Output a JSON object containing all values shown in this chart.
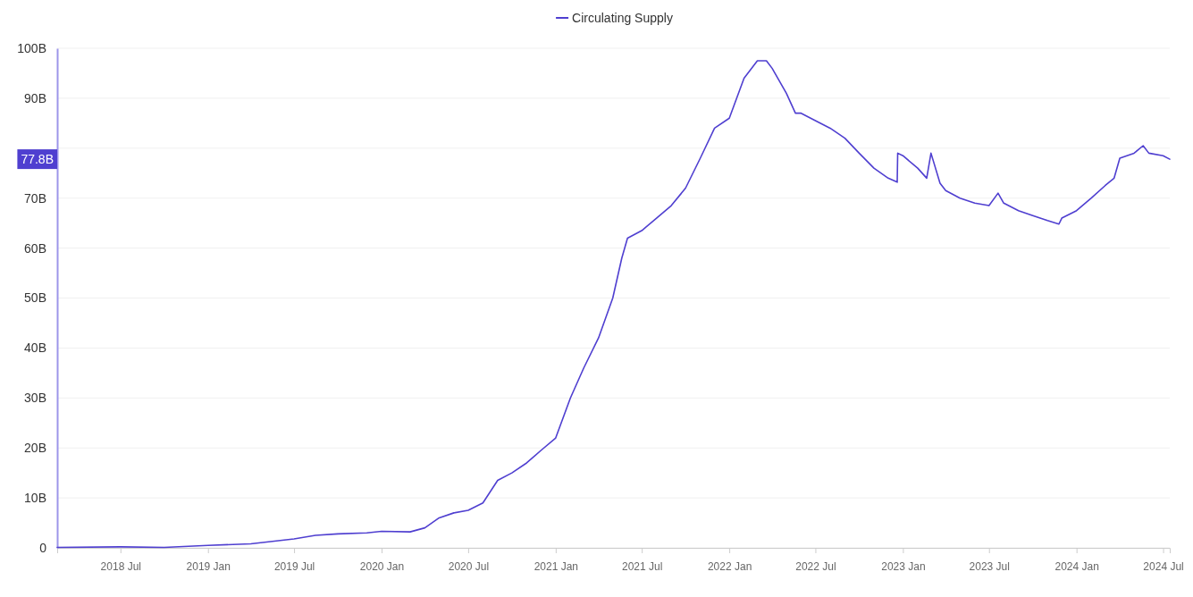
{
  "chart_data": {
    "type": "line",
    "legend": "top",
    "grid": "y",
    "xlim": [
      "2018-02-18",
      "2024-07-15"
    ],
    "xticks": [
      {
        "value": "2018-07-01",
        "label": "2018 Jul"
      },
      {
        "value": "2019-01-01",
        "label": "2019 Jan"
      },
      {
        "value": "2019-07-01",
        "label": "2019 Jul"
      },
      {
        "value": "2020-01-01",
        "label": "2020 Jan"
      },
      {
        "value": "2020-07-01",
        "label": "2020 Jul"
      },
      {
        "value": "2021-01-01",
        "label": "2021 Jan"
      },
      {
        "value": "2021-07-01",
        "label": "2021 Jul"
      },
      {
        "value": "2022-01-01",
        "label": "2022 Jan"
      },
      {
        "value": "2022-07-01",
        "label": "2022 Jul"
      },
      {
        "value": "2023-01-01",
        "label": "2023 Jan"
      },
      {
        "value": "2023-07-01",
        "label": "2023 Jul"
      },
      {
        "value": "2024-01-01",
        "label": "2024 Jan"
      },
      {
        "value": "2024-07-01",
        "label": "2024 Jul"
      }
    ],
    "ylim": [
      0,
      100
    ],
    "yticks": [
      0,
      {
        "value": 10,
        "label": "10B"
      },
      {
        "value": 20,
        "label": "20B"
      },
      {
        "value": 30,
        "label": "30B"
      },
      {
        "value": 40,
        "label": "40B"
      },
      {
        "value": 50,
        "label": "50B"
      },
      {
        "value": 60,
        "label": "60B"
      },
      {
        "value": 70,
        "label": "70B"
      },
      {
        "value": 80,
        "label": null
      },
      {
        "value": 90,
        "label": "90B"
      },
      {
        "value": 100,
        "label": "100B"
      }
    ],
    "annotations": [
      "77.8B"
    ],
    "x": [
      "2018-02-18",
      "2018-07-01",
      "2018-10-01",
      "2019-01-01",
      "2019-04-01",
      "2019-07-01",
      "2019-08-15",
      "2019-10-01",
      "2019-12-01",
      "2020-01-01",
      "2020-03-01",
      "2020-04-01",
      "2020-05-01",
      "2020-06-01",
      "2020-07-01",
      "2020-08-01",
      "2020-09-01",
      "2020-10-01",
      "2020-11-01",
      "2020-12-01",
      "2021-01-01",
      "2021-02-01",
      "2021-03-01",
      "2021-04-01",
      "2021-05-01",
      "2021-05-20",
      "2021-06-01",
      "2021-07-01",
      "2021-08-01",
      "2021-09-01",
      "2021-10-01",
      "2021-11-01",
      "2021-12-01",
      "2022-01-01",
      "2022-02-01",
      "2022-03-01",
      "2022-03-20",
      "2022-04-01",
      "2022-05-01",
      "2022-05-20",
      "2022-06-01",
      "2022-07-01",
      "2022-08-01",
      "2022-09-01",
      "2022-10-01",
      "2022-11-01",
      "2022-12-01",
      "2022-12-20",
      "2022-12-21",
      "2023-01-01",
      "2023-02-01",
      "2023-02-20",
      "2023-03-01",
      "2023-03-20",
      "2023-04-01",
      "2023-05-01",
      "2023-06-01",
      "2023-07-01",
      "2023-07-20",
      "2023-08-01",
      "2023-09-01",
      "2023-10-01",
      "2023-11-01",
      "2023-11-25",
      "2023-12-01",
      "2024-01-01",
      "2024-02-01",
      "2024-03-01",
      "2024-03-20",
      "2024-04-01",
      "2024-05-01",
      "2024-05-20",
      "2024-06-01",
      "2024-07-01",
      "2024-07-15"
    ],
    "series": [
      {
        "name": "Circulating Supply",
        "color": "#4f3fd0",
        "values": [
          0.1,
          0.2,
          0.1,
          0.5,
          0.8,
          1.8,
          2.5,
          2.8,
          3.0,
          3.3,
          3.2,
          4.0,
          6.0,
          7.0,
          7.5,
          9.0,
          13.5,
          15.0,
          17.0,
          19.5,
          22,
          30,
          36,
          42,
          50,
          58,
          62,
          63.5,
          66,
          68.5,
          72,
          78,
          84,
          86,
          94,
          97.5,
          97.5,
          96,
          91,
          87,
          87,
          85.5,
          84,
          82,
          79,
          76,
          74,
          73.2,
          79,
          78.5,
          76,
          74,
          79,
          73,
          71.5,
          70,
          69,
          68.5,
          71,
          69,
          67.5,
          66.5,
          65.5,
          64.8,
          66,
          67.5,
          70,
          72.5,
          74,
          78,
          79,
          80.5,
          79,
          78.5,
          77.8
        ]
      }
    ]
  }
}
